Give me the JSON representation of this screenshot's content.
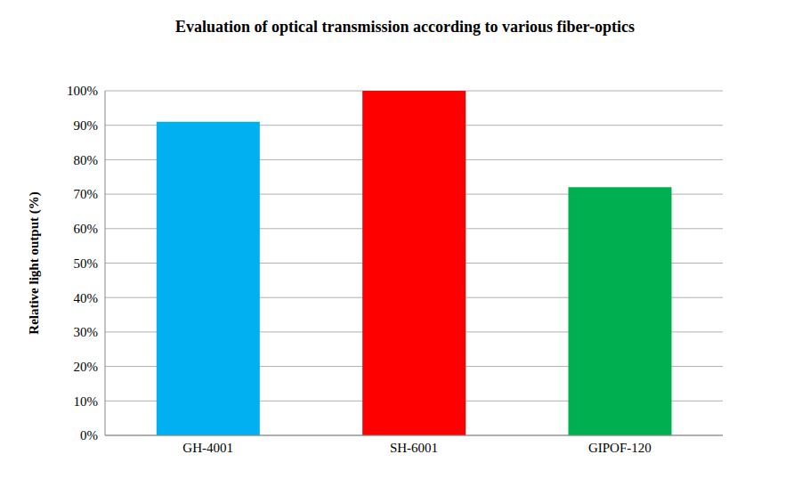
{
  "chart_data": {
    "type": "bar",
    "title": "Evaluation of optical transmission according to various fiber-optics",
    "y_label": "Relative light output (%)",
    "categories": [
      "GH-4001",
      "SH-6001",
      "GIPOF-120"
    ],
    "values": [
      91,
      100,
      72
    ],
    "colors": [
      "#00b0f0",
      "#ff0000",
      "#00b050"
    ],
    "ylim": [
      0,
      100
    ],
    "yticks": [
      {
        "value": 0,
        "label": "0%"
      },
      {
        "value": 10,
        "label": "10%"
      },
      {
        "value": 20,
        "label": "20%"
      },
      {
        "value": 30,
        "label": "30%"
      },
      {
        "value": 40,
        "label": "40%"
      },
      {
        "value": 50,
        "label": "50%"
      },
      {
        "value": 60,
        "label": "60%"
      },
      {
        "value": 70,
        "label": "70%"
      },
      {
        "value": 80,
        "label": "80%"
      },
      {
        "value": 90,
        "label": "90%"
      },
      {
        "value": 100,
        "label": "100%"
      }
    ],
    "grid": true
  }
}
